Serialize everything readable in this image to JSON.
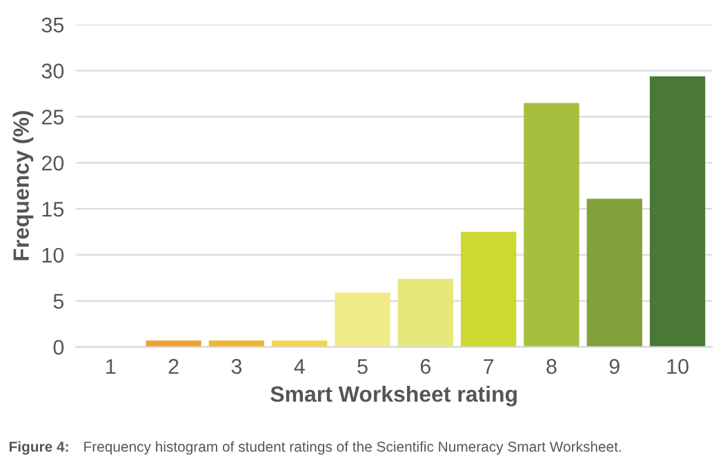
{
  "chart_data": {
    "type": "bar",
    "categories": [
      "1",
      "2",
      "3",
      "4",
      "5",
      "6",
      "7",
      "8",
      "9",
      "10"
    ],
    "values": [
      0,
      0.7,
      0.7,
      0.7,
      5.9,
      7.4,
      12.5,
      26.5,
      16.1,
      29.4
    ],
    "colors": [
      "#f0a030",
      "#f0a030",
      "#f2b530",
      "#f5d54a",
      "#f0ec88",
      "#e6e87a",
      "#cdd930",
      "#a6c03e",
      "#82a03a",
      "#4a7835"
    ],
    "xlabel": "Smart Worksheet rating",
    "ylabel": "Frequency (%)",
    "ylim": [
      0,
      35
    ],
    "yticks": [
      0,
      5,
      10,
      15,
      20,
      25,
      30,
      35
    ],
    "grid": "y",
    "legend": false,
    "annotations": [
      "Figure 4:",
      "Frequency histogram of student ratings of the Scientific Numeracy Smart Worksheet."
    ]
  }
}
